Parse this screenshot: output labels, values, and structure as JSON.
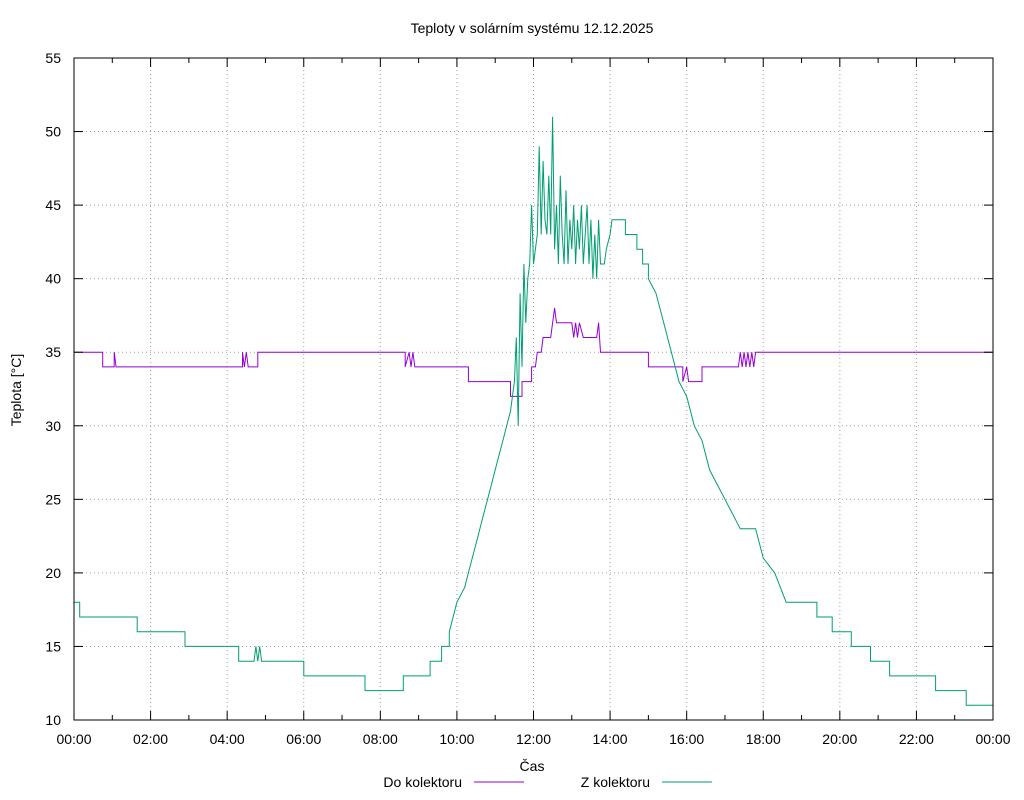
{
  "chart_data": {
    "type": "line",
    "title": "Teploty v solárním systému 12.12.2025",
    "xlabel": "Čas",
    "ylabel": "Teplota [°C]",
    "ylim": [
      10,
      55
    ],
    "xlim": [
      0,
      24
    ],
    "x_unit": "hours",
    "x_ticks": [
      {
        "x": 0,
        "label": "00:00"
      },
      {
        "x": 2,
        "label": "02:00"
      },
      {
        "x": 4,
        "label": "04:00"
      },
      {
        "x": 6,
        "label": "06:00"
      },
      {
        "x": 8,
        "label": "08:00"
      },
      {
        "x": 10,
        "label": "10:00"
      },
      {
        "x": 12,
        "label": "12:00"
      },
      {
        "x": 14,
        "label": "14:00"
      },
      {
        "x": 16,
        "label": "16:00"
      },
      {
        "x": 18,
        "label": "18:00"
      },
      {
        "x": 20,
        "label": "20:00"
      },
      {
        "x": 22,
        "label": "22:00"
      },
      {
        "x": 24,
        "label": "00:00"
      }
    ],
    "y_ticks": [
      {
        "y": 10,
        "label": "10"
      },
      {
        "y": 15,
        "label": "15"
      },
      {
        "y": 20,
        "label": "20"
      },
      {
        "y": 25,
        "label": "25"
      },
      {
        "y": 30,
        "label": "30"
      },
      {
        "y": 35,
        "label": "35"
      },
      {
        "y": 40,
        "label": "40"
      },
      {
        "y": 45,
        "label": "45"
      },
      {
        "y": 50,
        "label": "50"
      },
      {
        "y": 55,
        "label": "55"
      }
    ],
    "grid": true,
    "legend_position": "bottom-center",
    "series": [
      {
        "name": "Do kolektoru",
        "color": "#9400d3",
        "points": [
          [
            0,
            35
          ],
          [
            0.75,
            35
          ],
          [
            0.75,
            34
          ],
          [
            1.05,
            34
          ],
          [
            1.05,
            35
          ],
          [
            1.1,
            34
          ],
          [
            4.4,
            34
          ],
          [
            4.4,
            35
          ],
          [
            4.45,
            34
          ],
          [
            4.5,
            35
          ],
          [
            4.55,
            34
          ],
          [
            4.8,
            34
          ],
          [
            4.8,
            35
          ],
          [
            8.65,
            35
          ],
          [
            8.65,
            34
          ],
          [
            8.75,
            35
          ],
          [
            8.8,
            34
          ],
          [
            8.85,
            35
          ],
          [
            8.9,
            34
          ],
          [
            10.3,
            34
          ],
          [
            10.3,
            33
          ],
          [
            11.4,
            33
          ],
          [
            11.4,
            32
          ],
          [
            11.7,
            32
          ],
          [
            11.7,
            33
          ],
          [
            11.95,
            33
          ],
          [
            11.95,
            34
          ],
          [
            12.05,
            34
          ],
          [
            12.1,
            35
          ],
          [
            12.2,
            35
          ],
          [
            12.25,
            36
          ],
          [
            12.45,
            36
          ],
          [
            12.5,
            37
          ],
          [
            12.55,
            38
          ],
          [
            12.6,
            37
          ],
          [
            13.0,
            37
          ],
          [
            13.05,
            36
          ],
          [
            13.1,
            37
          ],
          [
            13.15,
            36
          ],
          [
            13.2,
            37
          ],
          [
            13.3,
            36
          ],
          [
            13.65,
            36
          ],
          [
            13.7,
            37
          ],
          [
            13.75,
            35
          ],
          [
            15.0,
            35
          ],
          [
            15.0,
            34
          ],
          [
            15.9,
            34
          ],
          [
            15.9,
            33
          ],
          [
            16.0,
            34
          ],
          [
            16.05,
            33
          ],
          [
            16.4,
            33
          ],
          [
            16.4,
            34
          ],
          [
            17.35,
            34
          ],
          [
            17.4,
            35
          ],
          [
            17.45,
            34
          ],
          [
            17.5,
            35
          ],
          [
            17.55,
            34
          ],
          [
            17.6,
            35
          ],
          [
            17.65,
            34
          ],
          [
            17.7,
            35
          ],
          [
            17.75,
            34
          ],
          [
            17.8,
            35
          ],
          [
            24,
            35
          ]
        ]
      },
      {
        "name": "Z kolektoru",
        "color": "#009e73",
        "points": [
          [
            0,
            18
          ],
          [
            0.15,
            18
          ],
          [
            0.15,
            17
          ],
          [
            1.65,
            17
          ],
          [
            1.65,
            16
          ],
          [
            2.9,
            16
          ],
          [
            2.9,
            15
          ],
          [
            4.3,
            15
          ],
          [
            4.3,
            14
          ],
          [
            4.7,
            14
          ],
          [
            4.75,
            15
          ],
          [
            4.8,
            14
          ],
          [
            4.85,
            15
          ],
          [
            4.9,
            14
          ],
          [
            6.0,
            14
          ],
          [
            6.0,
            13
          ],
          [
            7.6,
            13
          ],
          [
            7.6,
            12
          ],
          [
            8.6,
            12
          ],
          [
            8.6,
            13
          ],
          [
            9.3,
            13
          ],
          [
            9.3,
            14
          ],
          [
            9.6,
            14
          ],
          [
            9.6,
            15
          ],
          [
            9.8,
            15
          ],
          [
            9.8,
            16
          ],
          [
            9.9,
            17
          ],
          [
            10.0,
            18
          ],
          [
            10.2,
            19
          ],
          [
            10.3,
            20
          ],
          [
            10.4,
            21
          ],
          [
            10.5,
            22
          ],
          [
            10.6,
            23
          ],
          [
            10.7,
            24
          ],
          [
            10.8,
            25
          ],
          [
            10.9,
            26
          ],
          [
            11.0,
            27
          ],
          [
            11.1,
            28
          ],
          [
            11.2,
            29
          ],
          [
            11.3,
            30
          ],
          [
            11.4,
            31
          ],
          [
            11.5,
            33
          ],
          [
            11.55,
            36
          ],
          [
            11.6,
            30
          ],
          [
            11.65,
            39
          ],
          [
            11.7,
            34
          ],
          [
            11.75,
            41
          ],
          [
            11.8,
            37
          ],
          [
            11.85,
            40
          ],
          [
            11.9,
            41
          ],
          [
            11.95,
            45
          ],
          [
            12.0,
            41
          ],
          [
            12.05,
            42
          ],
          [
            12.1,
            43
          ],
          [
            12.15,
            49
          ],
          [
            12.2,
            43
          ],
          [
            12.25,
            48
          ],
          [
            12.3,
            44
          ],
          [
            12.35,
            43
          ],
          [
            12.4,
            47
          ],
          [
            12.45,
            43
          ],
          [
            12.5,
            51
          ],
          [
            12.55,
            42
          ],
          [
            12.6,
            45
          ],
          [
            12.65,
            41
          ],
          [
            12.7,
            47
          ],
          [
            12.75,
            43
          ],
          [
            12.8,
            41
          ],
          [
            12.85,
            46
          ],
          [
            12.9,
            41
          ],
          [
            12.95,
            44
          ],
          [
            13.0,
            42
          ],
          [
            13.05,
            45
          ],
          [
            13.1,
            41
          ],
          [
            13.15,
            44
          ],
          [
            13.2,
            42
          ],
          [
            13.25,
            45
          ],
          [
            13.3,
            41
          ],
          [
            13.35,
            43
          ],
          [
            13.4,
            45
          ],
          [
            13.45,
            41
          ],
          [
            13.5,
            44
          ],
          [
            13.55,
            40
          ],
          [
            13.6,
            43
          ],
          [
            13.65,
            40
          ],
          [
            13.7,
            44
          ],
          [
            13.75,
            41
          ],
          [
            13.85,
            41
          ],
          [
            13.9,
            42
          ],
          [
            14.0,
            43
          ],
          [
            14.05,
            44
          ],
          [
            14.4,
            44
          ],
          [
            14.4,
            43
          ],
          [
            14.7,
            43
          ],
          [
            14.7,
            42
          ],
          [
            14.85,
            42
          ],
          [
            14.85,
            41
          ],
          [
            15.0,
            41
          ],
          [
            15.0,
            40
          ],
          [
            15.2,
            39
          ],
          [
            15.4,
            37
          ],
          [
            15.6,
            35
          ],
          [
            15.8,
            33
          ],
          [
            16.0,
            32
          ],
          [
            16.2,
            30
          ],
          [
            16.4,
            29
          ],
          [
            16.6,
            27
          ],
          [
            16.8,
            26
          ],
          [
            17.0,
            25
          ],
          [
            17.2,
            24
          ],
          [
            17.4,
            23
          ],
          [
            17.8,
            23
          ],
          [
            18.0,
            21
          ],
          [
            18.3,
            20
          ],
          [
            18.6,
            18
          ],
          [
            19.4,
            18
          ],
          [
            19.4,
            17
          ],
          [
            19.8,
            17
          ],
          [
            19.8,
            16
          ],
          [
            20.3,
            16
          ],
          [
            20.3,
            15
          ],
          [
            20.8,
            15
          ],
          [
            20.8,
            14
          ],
          [
            21.3,
            14
          ],
          [
            21.3,
            13
          ],
          [
            22.5,
            13
          ],
          [
            22.5,
            12
          ],
          [
            23.3,
            12
          ],
          [
            23.3,
            11
          ],
          [
            24,
            11
          ]
        ]
      }
    ]
  }
}
